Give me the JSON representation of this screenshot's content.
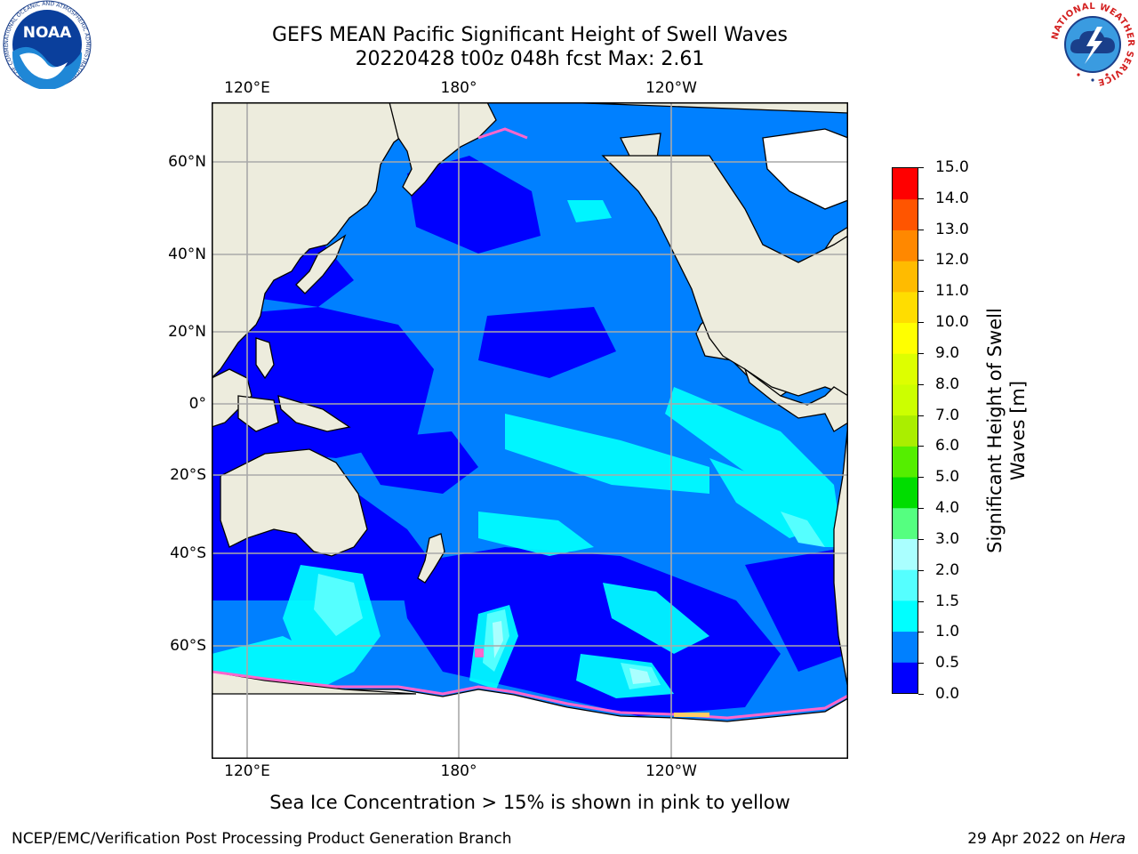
{
  "header": {
    "title_line1": "GEFS MEAN Pacific Significant Height of Swell Waves",
    "title_line2": "20220428 t00z 048h fcst   Max: 2.61"
  },
  "map": {
    "projection": "equirectangular",
    "lon_ticks_top": [
      "120°E",
      "180°",
      "120°W"
    ],
    "lon_ticks_bottom": [
      "120°E",
      "180°",
      "120°W"
    ],
    "lat_ticks": [
      "60°N",
      "40°N",
      "20°N",
      "0°",
      "20°S",
      "40°S",
      "60°S"
    ],
    "colors": {
      "land": "#EDECDD",
      "ice_land": "#FFFFFF",
      "grid": "#A9A9A9",
      "coast": "#000000",
      "sea_ice": "#FF66CC"
    }
  },
  "colorbar": {
    "title_line1": "Significant Height of Swell",
    "title_line2": "Waves [m]",
    "labels": [
      "15.0",
      "14.0",
      "13.0",
      "12.0",
      "11.0",
      "10.0",
      "9.0",
      "8.0",
      "7.0",
      "6.0",
      "5.0",
      "4.0",
      "3.0",
      "2.0",
      "1.5",
      "1.0",
      "0.5",
      "0.0"
    ],
    "levels_bottom_to_top": [
      0.0,
      0.5,
      1.0,
      1.5,
      2.0,
      3.0,
      4.0,
      5.0,
      6.0,
      7.0,
      8.0,
      9.0,
      10.0,
      11.0,
      12.0,
      13.0,
      14.0,
      15.0
    ],
    "colors_bottom_to_top": [
      "#0000FF",
      "#0080FF",
      "#00FFFF",
      "#55FFFF",
      "#AAFFFF",
      "#55FF80",
      "#00DD00",
      "#55EE00",
      "#AAEE00",
      "#CCFF00",
      "#DDFF00",
      "#FFFF00",
      "#FFDD00",
      "#FFBB00",
      "#FF8800",
      "#FF5500",
      "#FF0000"
    ]
  },
  "caption": "Sea Ice Concentration > 15% is shown in pink to yellow",
  "footer": {
    "left": "NCEP/EMC/Verification Post Processing Product Generation Branch",
    "right_prefix": "29 Apr 2022 on ",
    "right_host": "Hera"
  },
  "logos": {
    "noaa_text": "NOAA",
    "noaa_ring_text": "NATIONAL OCEANIC AND ATMOSPHERIC ADMINISTRATION · U.S. DEPARTMENT OF COMMERCE",
    "nws_ring_text": "NATIONAL WEATHER SERVICE"
  }
}
